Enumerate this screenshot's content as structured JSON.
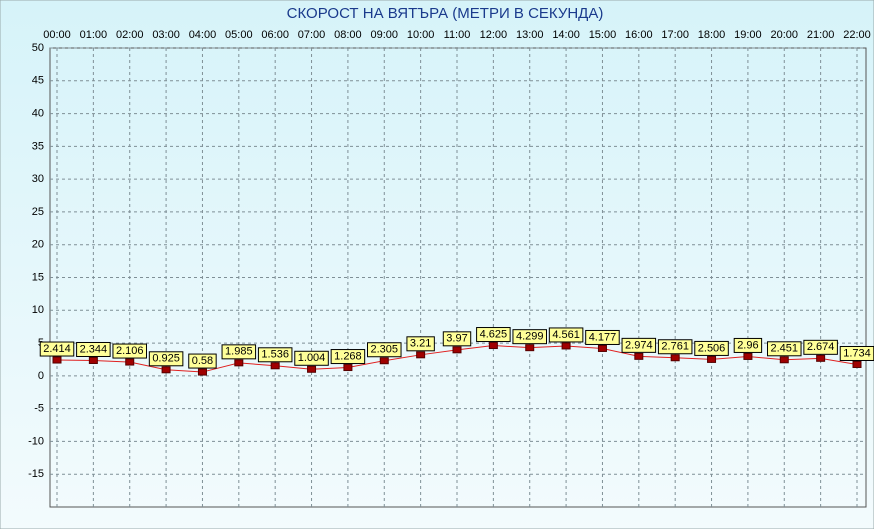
{
  "chart_data": {
    "type": "line",
    "title": "СКОРОСТ НА ВЯТЪРА (МЕТРИ В СЕКУНДА)",
    "categories": [
      "00:00",
      "01:00",
      "02:00",
      "03:00",
      "04:00",
      "05:00",
      "06:00",
      "07:00",
      "08:00",
      "09:00",
      "10:00",
      "11:00",
      "12:00",
      "13:00",
      "14:00",
      "15:00",
      "16:00",
      "17:00",
      "18:00",
      "19:00",
      "20:00",
      "21:00",
      "22:00"
    ],
    "values": [
      2.414,
      2.344,
      2.106,
      0.925,
      0.58,
      1.985,
      1.536,
      1.004,
      1.268,
      2.305,
      3.21,
      3.97,
      4.625,
      4.299,
      4.561,
      4.177,
      2.974,
      2.761,
      2.506,
      2.96,
      2.451,
      2.674,
      1.734
    ],
    "color": "#e02020",
    "marker_color": "#a00000",
    "ylim": [
      -20,
      50
    ],
    "yticks": [
      -15,
      -10,
      -5,
      0,
      5,
      10,
      15,
      20,
      25,
      30,
      35,
      40,
      45,
      50
    ],
    "grid": true
  }
}
